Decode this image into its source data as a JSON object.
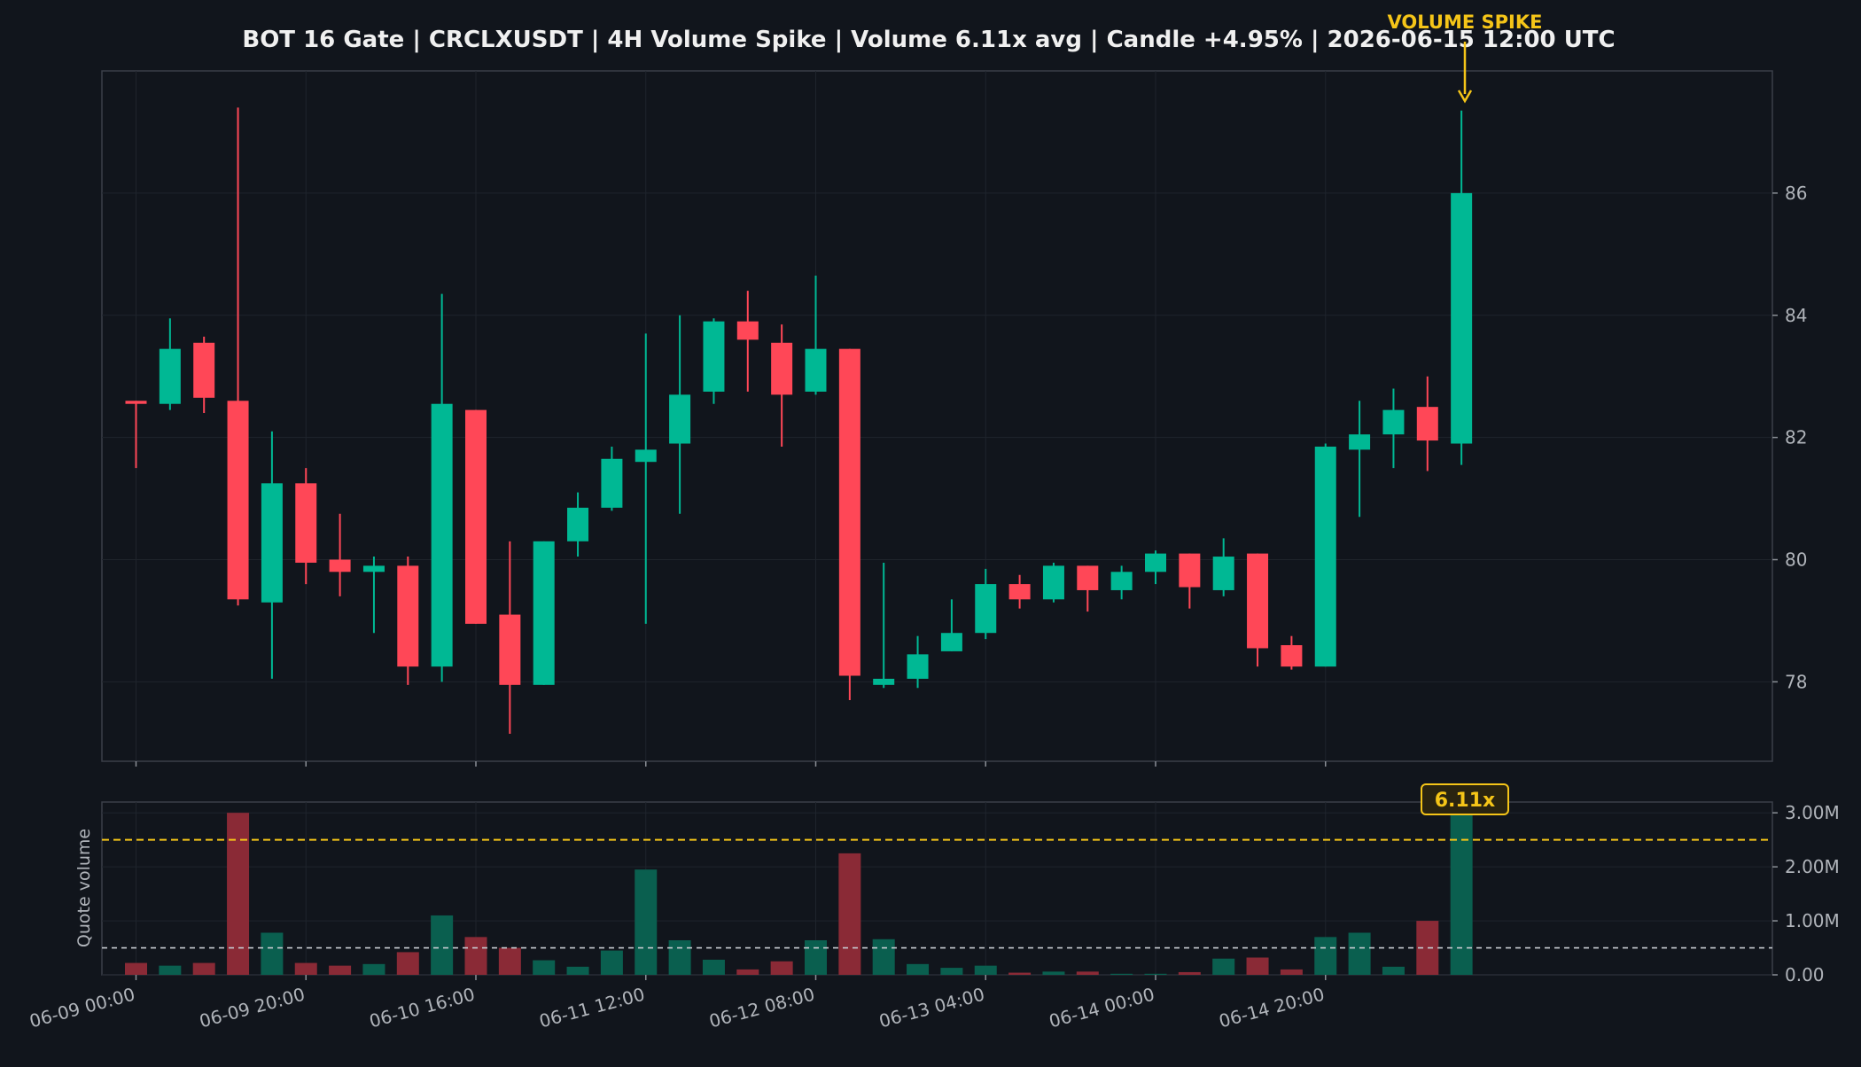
{
  "chart_data": {
    "type": "candlestick",
    "title": "BOT 16 Gate | CRCLXUSDT | 4H Volume Spike | Volume 6.11x avg | Candle +4.95% | 2026-06-15 12:00 UTC",
    "annotation": "VOLUME SPIKE",
    "spike_badge": "6.11x",
    "volume_ylabel": "Quote volume",
    "x_tick_labels": [
      "06-09 00:00",
      "06-09 20:00",
      "06-10 16:00",
      "06-11 12:00",
      "06-12 08:00",
      "06-13 04:00",
      "06-14 00:00",
      "06-14 20:00"
    ],
    "price_ticks": [
      "78",
      "80",
      "82",
      "84",
      "86"
    ],
    "volume_ticks": [
      "0.00",
      "1.00M",
      "2.00M",
      "3.00M"
    ],
    "price_ylim": [
      76.7,
      88.0
    ],
    "volume_ylim": [
      0,
      3.2
    ],
    "average_volume": 0.5,
    "spike_threshold": 2.5,
    "candles": [
      {
        "o": 82.6,
        "h": 82.6,
        "l": 81.5,
        "c": 82.55,
        "v": 0.22
      },
      {
        "o": 82.55,
        "h": 83.95,
        "l": 82.45,
        "c": 83.45,
        "v": 0.17
      },
      {
        "o": 83.55,
        "h": 83.65,
        "l": 82.4,
        "c": 82.65,
        "v": 0.22
      },
      {
        "o": 82.6,
        "h": 87.4,
        "l": 79.25,
        "c": 79.35,
        "v": 3.0
      },
      {
        "o": 79.3,
        "h": 82.1,
        "l": 78.05,
        "c": 81.25,
        "v": 0.78
      },
      {
        "o": 81.25,
        "h": 81.5,
        "l": 79.6,
        "c": 79.95,
        "v": 0.22
      },
      {
        "o": 80.0,
        "h": 80.75,
        "l": 79.4,
        "c": 79.8,
        "v": 0.17
      },
      {
        "o": 79.8,
        "h": 80.05,
        "l": 78.8,
        "c": 79.9,
        "v": 0.2
      },
      {
        "o": 79.9,
        "h": 80.05,
        "l": 77.95,
        "c": 78.25,
        "v": 0.42
      },
      {
        "o": 78.25,
        "h": 84.35,
        "l": 78.0,
        "c": 82.55,
        "v": 1.1
      },
      {
        "o": 82.45,
        "h": 82.45,
        "l": 78.95,
        "c": 78.95,
        "v": 0.7
      },
      {
        "o": 79.1,
        "h": 80.3,
        "l": 77.15,
        "c": 77.95,
        "v": 0.5
      },
      {
        "o": 77.95,
        "h": 80.3,
        "l": 77.95,
        "c": 80.3,
        "v": 0.27
      },
      {
        "o": 80.3,
        "h": 81.1,
        "l": 80.05,
        "c": 80.85,
        "v": 0.15
      },
      {
        "o": 80.85,
        "h": 81.85,
        "l": 80.8,
        "c": 81.65,
        "v": 0.45
      },
      {
        "o": 81.6,
        "h": 83.7,
        "l": 78.95,
        "c": 81.8,
        "v": 1.95
      },
      {
        "o": 81.9,
        "h": 84.0,
        "l": 80.75,
        "c": 82.7,
        "v": 0.64
      },
      {
        "o": 82.75,
        "h": 83.95,
        "l": 82.55,
        "c": 83.9,
        "v": 0.28
      },
      {
        "o": 83.9,
        "h": 84.4,
        "l": 82.75,
        "c": 83.6,
        "v": 0.1
      },
      {
        "o": 83.55,
        "h": 83.85,
        "l": 81.85,
        "c": 82.7,
        "v": 0.25
      },
      {
        "o": 82.75,
        "h": 84.65,
        "l": 82.7,
        "c": 83.45,
        "v": 0.64
      },
      {
        "o": 83.45,
        "h": 83.45,
        "l": 77.7,
        "c": 78.1,
        "v": 2.25
      },
      {
        "o": 77.95,
        "h": 79.95,
        "l": 77.9,
        "c": 78.05,
        "v": 0.66
      },
      {
        "o": 78.05,
        "h": 78.75,
        "l": 77.9,
        "c": 78.45,
        "v": 0.2
      },
      {
        "o": 78.5,
        "h": 79.35,
        "l": 78.5,
        "c": 78.8,
        "v": 0.13
      },
      {
        "o": 78.8,
        "h": 79.85,
        "l": 78.7,
        "c": 79.6,
        "v": 0.17
      },
      {
        "o": 79.6,
        "h": 79.75,
        "l": 79.2,
        "c": 79.35,
        "v": 0.04
      },
      {
        "o": 79.35,
        "h": 79.95,
        "l": 79.3,
        "c": 79.9,
        "v": 0.06
      },
      {
        "o": 79.9,
        "h": 79.9,
        "l": 79.15,
        "c": 79.5,
        "v": 0.06
      },
      {
        "o": 79.5,
        "h": 79.9,
        "l": 79.35,
        "c": 79.8,
        "v": 0.02
      },
      {
        "o": 79.8,
        "h": 80.15,
        "l": 79.6,
        "c": 80.1,
        "v": 0.02
      },
      {
        "o": 80.1,
        "h": 80.1,
        "l": 79.2,
        "c": 79.55,
        "v": 0.05
      },
      {
        "o": 79.5,
        "h": 80.35,
        "l": 79.4,
        "c": 80.05,
        "v": 0.3
      },
      {
        "o": 80.1,
        "h": 80.1,
        "l": 78.25,
        "c": 78.55,
        "v": 0.32
      },
      {
        "o": 78.6,
        "h": 78.75,
        "l": 78.2,
        "c": 78.25,
        "v": 0.1
      },
      {
        "o": 78.25,
        "h": 81.9,
        "l": 78.25,
        "c": 81.85,
        "v": 0.7
      },
      {
        "o": 81.8,
        "h": 82.6,
        "l": 80.7,
        "c": 82.05,
        "v": 0.78
      },
      {
        "o": 82.05,
        "h": 82.8,
        "l": 81.5,
        "c": 82.45,
        "v": 0.15
      },
      {
        "o": 82.5,
        "h": 83.0,
        "l": 81.45,
        "c": 81.95,
        "v": 1.0
      },
      {
        "o": 81.9,
        "h": 87.35,
        "l": 81.55,
        "c": 86.0,
        "v": 3.05
      }
    ]
  },
  "colors": {
    "background": "#11151c",
    "plot_border": "#3a3f48",
    "grid": "#1f242c",
    "up": "#00b894",
    "down": "#ff4757",
    "up_volume": "#0a5f4f",
    "down_volume": "#8a2a36",
    "accent": "#f5c518",
    "text": "#f0f0f0",
    "tick_text": "#b0b4ba"
  }
}
